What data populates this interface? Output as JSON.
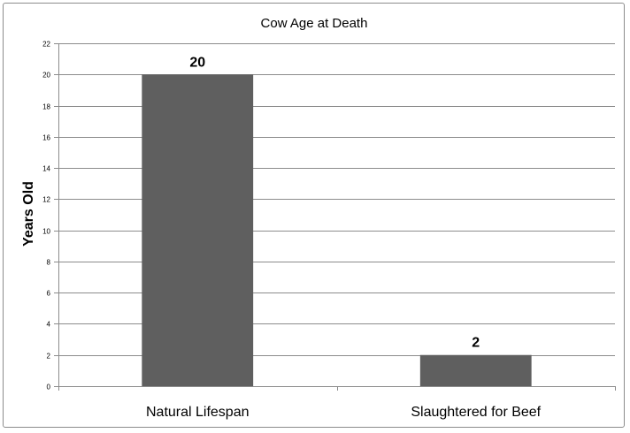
{
  "chart_data": {
    "type": "bar",
    "title": "Cow Age at Death",
    "xlabel": "",
    "ylabel": "Years Old",
    "categories": [
      "Natural Lifespan",
      "Slaughtered for Beef"
    ],
    "values": [
      20,
      2
    ],
    "data_labels": [
      "20",
      "2"
    ],
    "ylim": [
      0,
      22
    ],
    "yticks": [
      0,
      2,
      4,
      6,
      8,
      10,
      12,
      14,
      16,
      18,
      20,
      22
    ],
    "grid": true,
    "legend": "none",
    "colors": {
      "bar": "#5f5f5f",
      "grid": "#8c8c8c",
      "axis": "#8c8c8c",
      "frame": "#8c8c8c"
    }
  }
}
